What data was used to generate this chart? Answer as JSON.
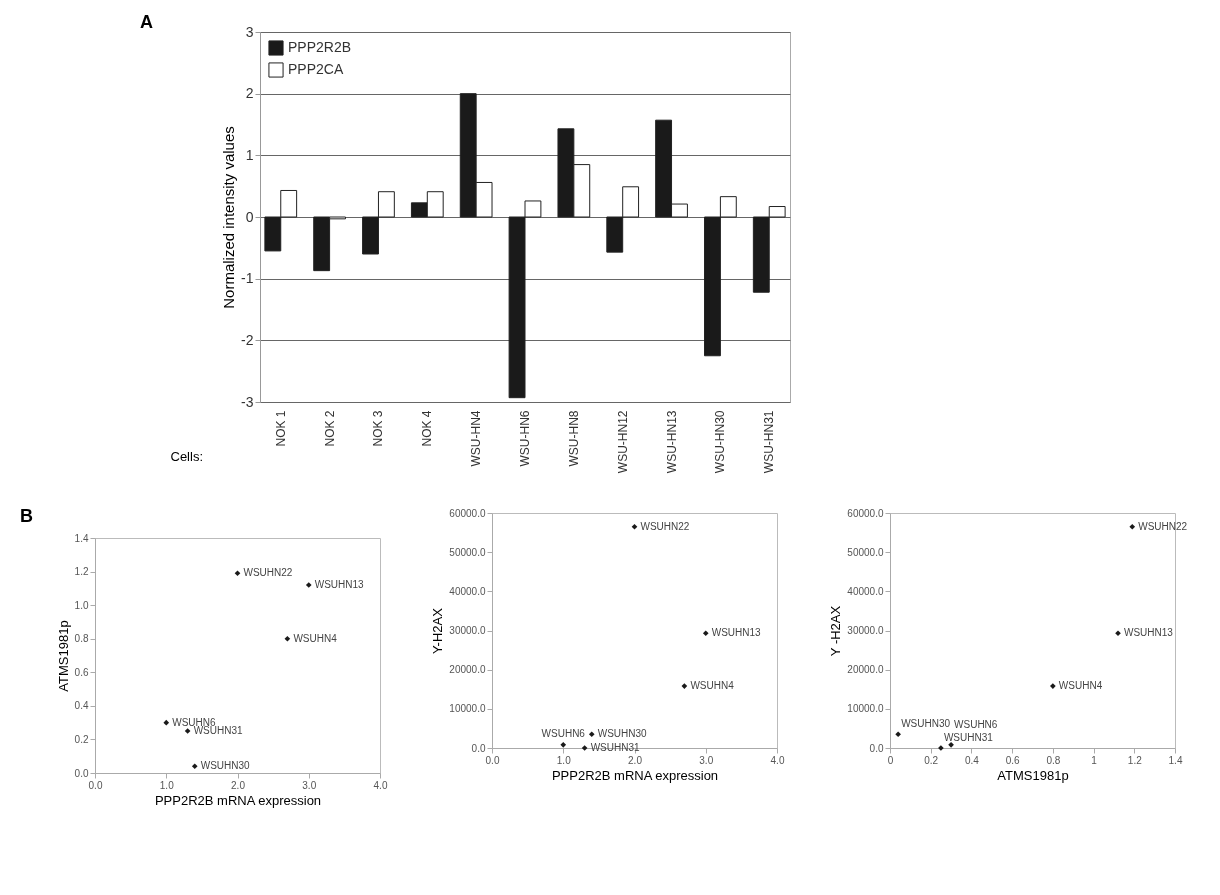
{
  "chart_data": [
    {
      "type": "bar",
      "ylabel": "Normalized intensity values",
      "xlabel": "Cells:",
      "categories": [
        "NOK 1",
        "NOK 2",
        "NOK 3",
        "NOK 4",
        "WSU-HN4",
        "WSU-HN6",
        "WSU-HN8",
        "WSU-HN12",
        "WSU-HN13",
        "WSU-HN30",
        "WSU-HN31"
      ],
      "series": [
        {
          "name": "PPP2R2B",
          "color": "#1a1a1a",
          "values": [
            -0.55,
            -0.87,
            -0.6,
            0.23,
            2.0,
            -2.93,
            1.43,
            -0.57,
            1.57,
            -2.25,
            -1.22
          ]
        },
        {
          "name": "PPP2CA",
          "color": "#ffffff",
          "values": [
            0.43,
            -0.03,
            0.41,
            0.41,
            0.56,
            0.26,
            0.85,
            0.49,
            0.21,
            0.33,
            0.17
          ]
        }
      ],
      "ylim": [
        -3,
        3
      ],
      "yticks": [
        -3,
        -2,
        -1,
        0,
        1,
        2,
        3
      ],
      "grid": "y",
      "legend": "top left",
      "annotations": [
        "A"
      ]
    },
    {
      "type": "scatter",
      "xlabel": "PPP2R2B mRNA expression",
      "ylabel": "ATMS1981p",
      "marker": "diamond",
      "series": [
        {
          "color": "#1a1a1a",
          "x": [
            2.0,
            3.0,
            2.7,
            1.0,
            1.3,
            1.4
          ],
          "values": [
            1.19,
            1.12,
            0.8,
            0.3,
            0.25,
            0.04
          ]
        }
      ],
      "xlim": [
        0,
        4
      ],
      "xticks": [
        {
          "value": 0,
          "label": "0.0"
        },
        {
          "value": 1,
          "label": "1.0"
        },
        {
          "value": 2,
          "label": "2.0"
        },
        {
          "value": 3,
          "label": "3.0"
        },
        {
          "value": 4,
          "label": "4.0"
        }
      ],
      "ylim": [
        0,
        1.4
      ],
      "yticks": [
        {
          "value": 0,
          "label": "0.0"
        },
        0.2,
        0.4,
        0.6,
        0.8,
        {
          "value": 1,
          "label": "1.0"
        },
        1.2,
        1.4
      ],
      "annotations": [
        "B",
        {
          "text": "WSUHN22",
          "x": 2.0,
          "y": 1.19
        },
        {
          "text": "WSUHN13",
          "x": 3.0,
          "y": 1.12
        },
        {
          "text": "WSUHN4",
          "x": 2.7,
          "y": 0.8
        },
        {
          "text": "WSUHN6",
          "x": 1.0,
          "y": 0.3
        },
        {
          "text": "WSUHN31",
          "x": 1.3,
          "y": 0.25
        },
        {
          "text": "WSUHN30",
          "x": 1.4,
          "y": 0.04
        }
      ]
    },
    {
      "type": "scatter",
      "xlabel": "PPP2R2B mRNA expression",
      "ylabel": "Y-H2AX",
      "marker": "diamond",
      "series": [
        {
          "color": "#1a1a1a",
          "x": [
            2.0,
            3.0,
            2.7,
            1.4,
            1.0,
            1.3
          ],
          "values": [
            56500,
            29300,
            15800,
            3500,
            800,
            0
          ]
        }
      ],
      "xlim": [
        0,
        4
      ],
      "xticks": [
        {
          "value": 0,
          "label": "0.0"
        },
        {
          "value": 1,
          "label": "1.0"
        },
        {
          "value": 2,
          "label": "2.0"
        },
        {
          "value": 3,
          "label": "3.0"
        },
        {
          "value": 4,
          "label": "4.0"
        }
      ],
      "ylim": [
        0,
        60000
      ],
      "yticks": [
        {
          "value": 0,
          "label": "0.0"
        },
        {
          "value": 10000,
          "label": "10000.0"
        },
        {
          "value": 20000,
          "label": "20000.0"
        },
        {
          "value": 30000,
          "label": "30000.0"
        },
        {
          "value": 40000,
          "label": "40000.0"
        },
        {
          "value": 50000,
          "label": "50000.0"
        },
        {
          "value": 60000,
          "label": "60000.0"
        }
      ],
      "annotations": [
        {
          "text": "WSUHN22",
          "x": 2.0,
          "y": 56500
        },
        {
          "text": "WSUHN13",
          "x": 3.0,
          "y": 29300
        },
        {
          "text": "WSUHN4",
          "x": 2.7,
          "y": 15800
        },
        {
          "text": "WSUHN30",
          "x": 1.4,
          "y": 3500
        },
        {
          "text": "WSUHN6",
          "x": 1.0,
          "y": 800
        },
        {
          "text": "WSUHN31",
          "x": 1.3,
          "y": 0
        }
      ]
    },
    {
      "type": "scatter",
      "xlabel": "ATMS1981p",
      "ylabel": "Y -H2AX",
      "marker": "diamond",
      "series": [
        {
          "color": "#1a1a1a",
          "x": [
            1.19,
            1.12,
            0.8,
            0.04,
            0.3,
            0.25
          ],
          "values": [
            56500,
            29300,
            15800,
            3500,
            800,
            0
          ]
        }
      ],
      "xlim": [
        0,
        1.4
      ],
      "xticks": [
        0,
        0.2,
        0.4,
        0.6,
        0.8,
        1,
        1.2,
        1.4
      ],
      "ylim": [
        0,
        60000
      ],
      "yticks": [
        {
          "value": 0,
          "label": "0.0"
        },
        {
          "value": 10000,
          "label": "10000.0"
        },
        {
          "value": 20000,
          "label": "20000.0"
        },
        {
          "value": 30000,
          "label": "30000.0"
        },
        {
          "value": 40000,
          "label": "40000.0"
        },
        {
          "value": 50000,
          "label": "50000.0"
        },
        {
          "value": 60000,
          "label": "60000.0"
        }
      ],
      "annotations": [
        {
          "text": "WSUHN22",
          "x": 1.19,
          "y": 56500
        },
        {
          "text": "WSUHN13",
          "x": 1.12,
          "y": 29300
        },
        {
          "text": "WSUHN4",
          "x": 0.8,
          "y": 15800
        },
        {
          "text": "WSUHN30",
          "x": 0.04,
          "y": 3500
        },
        {
          "text": "WSUHN6",
          "x": 0.3,
          "y": 800
        },
        {
          "text": "WSUHN31",
          "x": 0.25,
          "y": 0
        }
      ]
    }
  ]
}
